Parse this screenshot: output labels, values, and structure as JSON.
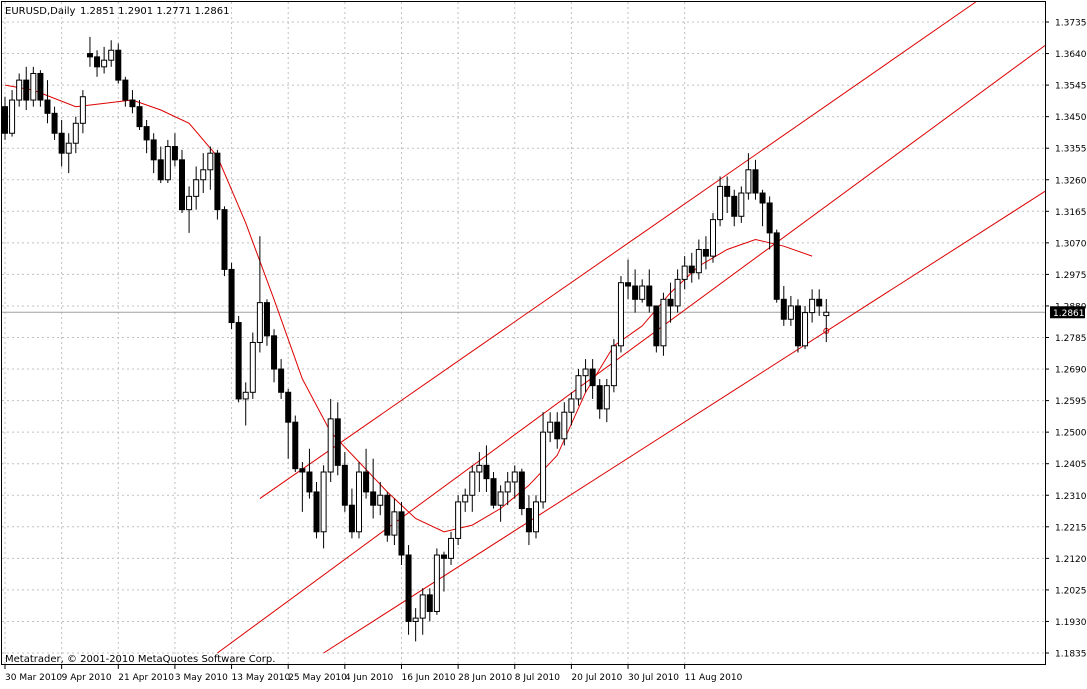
{
  "header": {
    "symbol": "EURUSD,Daily",
    "ohlc": "1.2851 1.2901 1.2771 1.2861"
  },
  "footer": {
    "copyright": "Metatrader, © 2001-2010 MetaQuotes Software Corp."
  },
  "colors": {
    "background": "#ffffff",
    "grid": "#c0c0c0",
    "candle": "#000000",
    "indicator": "#dd0000",
    "price_label_bg": "#000000",
    "price_label_fg": "#ffffff"
  },
  "chart_data": {
    "type": "candlestick",
    "symbol": "EURUSD",
    "timeframe": "Daily",
    "ylim": [
      1.1835,
      1.3785
    ],
    "y_ticks": [
      "1.3735",
      "1.3640",
      "1.3545",
      "1.3450",
      "1.3355",
      "1.3260",
      "1.3165",
      "1.3070",
      "1.2975",
      "1.2880",
      "1.2785",
      "1.2690",
      "1.2595",
      "1.2500",
      "1.2405",
      "1.2310",
      "1.2215",
      "1.2120",
      "1.2025",
      "1.1930",
      "1.1835"
    ],
    "x_ticks": [
      {
        "label": "30 Mar 2010",
        "bar": 0
      },
      {
        "label": "9 Apr 2010",
        "bar": 8
      },
      {
        "label": "21 Apr 2010",
        "bar": 16
      },
      {
        "label": "3 May 2010",
        "bar": 24
      },
      {
        "label": "13 May 2010",
        "bar": 32
      },
      {
        "label": "25 May 2010",
        "bar": 40
      },
      {
        "label": "4 Jun 2010",
        "bar": 48
      },
      {
        "label": "16 Jun 2010",
        "bar": 56
      },
      {
        "label": "28 Jun 2010",
        "bar": 64
      },
      {
        "label": "8 Jul 2010",
        "bar": 72
      },
      {
        "label": "20 Jul 2010",
        "bar": 80
      },
      {
        "label": "30 Jul 2010",
        "bar": 88
      },
      {
        "label": "11 Aug 2010",
        "bar": 96
      }
    ],
    "current_price": "1.2861",
    "grid": true,
    "candles": [
      [
        1.348,
        1.351,
        1.338,
        1.34
      ],
      [
        1.34,
        1.353,
        1.339,
        1.35
      ],
      [
        1.35,
        1.358,
        1.348,
        1.356
      ],
      [
        1.356,
        1.36,
        1.347,
        1.35
      ],
      [
        1.35,
        1.36,
        1.348,
        1.358
      ],
      [
        1.358,
        1.359,
        1.348,
        1.35
      ],
      [
        1.35,
        1.356,
        1.343,
        1.346
      ],
      [
        1.346,
        1.348,
        1.338,
        1.34
      ],
      [
        1.34,
        1.344,
        1.33,
        1.334
      ],
      [
        1.334,
        1.34,
        1.328,
        1.337
      ],
      [
        1.337,
        1.345,
        1.334,
        1.343
      ],
      [
        1.343,
        1.353,
        1.34,
        1.351
      ],
      [
        1.364,
        1.369,
        1.36,
        1.363
      ],
      [
        1.363,
        1.365,
        1.357,
        1.36
      ],
      [
        1.36,
        1.366,
        1.358,
        1.362
      ],
      [
        1.362,
        1.368,
        1.36,
        1.365
      ],
      [
        1.365,
        1.367,
        1.355,
        1.356
      ],
      [
        1.356,
        1.357,
        1.348,
        1.35
      ],
      [
        1.35,
        1.353,
        1.346,
        1.348
      ],
      [
        1.348,
        1.35,
        1.341,
        1.342
      ],
      [
        1.342,
        1.344,
        1.334,
        1.338
      ],
      [
        1.338,
        1.34,
        1.328,
        1.332
      ],
      [
        1.332,
        1.336,
        1.325,
        1.326
      ],
      [
        1.326,
        1.338,
        1.325,
        1.336
      ],
      [
        1.336,
        1.34,
        1.33,
        1.332
      ],
      [
        1.332,
        1.335,
        1.316,
        1.317
      ],
      [
        1.317,
        1.324,
        1.31,
        1.321
      ],
      [
        1.321,
        1.33,
        1.317,
        1.326
      ],
      [
        1.326,
        1.334,
        1.322,
        1.329
      ],
      [
        1.329,
        1.336,
        1.323,
        1.334
      ],
      [
        1.334,
        1.335,
        1.314,
        1.317
      ],
      [
        1.317,
        1.318,
        1.297,
        1.299
      ],
      [
        1.299,
        1.301,
        1.281,
        1.283
      ],
      [
        1.283,
        1.285,
        1.259,
        1.26
      ],
      [
        1.26,
        1.265,
        1.252,
        1.262
      ],
      [
        1.262,
        1.28,
        1.26,
        1.277
      ],
      [
        1.277,
        1.309,
        1.274,
        1.289
      ],
      [
        1.289,
        1.29,
        1.276,
        1.279
      ],
      [
        1.279,
        1.281,
        1.265,
        1.269
      ],
      [
        1.269,
        1.272,
        1.26,
        1.262
      ],
      [
        1.262,
        1.263,
        1.242,
        1.253
      ],
      [
        1.253,
        1.255,
        1.238,
        1.239
      ],
      [
        1.239,
        1.241,
        1.226,
        1.238
      ],
      [
        1.238,
        1.245,
        1.23,
        1.232
      ],
      [
        1.232,
        1.235,
        1.218,
        1.22
      ],
      [
        1.22,
        1.24,
        1.215,
        1.238
      ],
      [
        1.238,
        1.26,
        1.235,
        1.254
      ],
      [
        1.254,
        1.259,
        1.237,
        1.24
      ],
      [
        1.24,
        1.244,
        1.226,
        1.228
      ],
      [
        1.228,
        1.233,
        1.218,
        1.22
      ],
      [
        1.22,
        1.241,
        1.218,
        1.238
      ],
      [
        1.238,
        1.245,
        1.23,
        1.232
      ],
      [
        1.232,
        1.242,
        1.224,
        1.228
      ],
      [
        1.228,
        1.235,
        1.225,
        1.231
      ],
      [
        1.231,
        1.232,
        1.217,
        1.219
      ],
      [
        1.219,
        1.23,
        1.216,
        1.226
      ],
      [
        1.226,
        1.229,
        1.21,
        1.213
      ],
      [
        1.213,
        1.216,
        1.189,
        1.193
      ],
      [
        1.193,
        1.197,
        1.187,
        1.194
      ],
      [
        1.194,
        1.203,
        1.189,
        1.201
      ],
      [
        1.201,
        1.203,
        1.193,
        1.196
      ],
      [
        1.196,
        1.215,
        1.195,
        1.213
      ],
      [
        1.213,
        1.214,
        1.202,
        1.212
      ],
      [
        1.212,
        1.22,
        1.21,
        1.218
      ],
      [
        1.218,
        1.231,
        1.216,
        1.229
      ],
      [
        1.229,
        1.233,
        1.226,
        1.231
      ],
      [
        1.231,
        1.24,
        1.226,
        1.238
      ],
      [
        1.238,
        1.244,
        1.232,
        1.24
      ],
      [
        1.24,
        1.246,
        1.232,
        1.236
      ],
      [
        1.236,
        1.238,
        1.227,
        1.228
      ],
      [
        1.228,
        1.234,
        1.223,
        1.232
      ],
      [
        1.232,
        1.238,
        1.228,
        1.235
      ],
      [
        1.235,
        1.24,
        1.23,
        1.238
      ],
      [
        1.238,
        1.239,
        1.225,
        1.227
      ],
      [
        1.227,
        1.231,
        1.216,
        1.22
      ],
      [
        1.22,
        1.231,
        1.218,
        1.229
      ],
      [
        1.229,
        1.256,
        1.227,
        1.25
      ],
      [
        1.25,
        1.256,
        1.247,
        1.253
      ],
      [
        1.253,
        1.256,
        1.245,
        1.248
      ],
      [
        1.248,
        1.259,
        1.246,
        1.256
      ],
      [
        1.256,
        1.262,
        1.252,
        1.26
      ],
      [
        1.26,
        1.269,
        1.258,
        1.267
      ],
      [
        1.267,
        1.272,
        1.262,
        1.269
      ],
      [
        1.269,
        1.272,
        1.26,
        1.264
      ],
      [
        1.264,
        1.266,
        1.254,
        1.257
      ],
      [
        1.257,
        1.266,
        1.253,
        1.264
      ],
      [
        1.264,
        1.278,
        1.262,
        1.276
      ],
      [
        1.276,
        1.297,
        1.274,
        1.295
      ],
      [
        1.295,
        1.302,
        1.29,
        1.294
      ],
      [
        1.294,
        1.299,
        1.286,
        1.29
      ],
      [
        1.29,
        1.296,
        1.289,
        1.294
      ],
      [
        1.294,
        1.299,
        1.286,
        1.288
      ],
      [
        1.288,
        1.288,
        1.274,
        1.276
      ],
      [
        1.276,
        1.292,
        1.273,
        1.29
      ],
      [
        1.29,
        1.295,
        1.283,
        1.288
      ],
      [
        1.288,
        1.299,
        1.286,
        1.296
      ],
      [
        1.296,
        1.303,
        1.293,
        1.3
      ],
      [
        1.3,
        1.304,
        1.295,
        1.298
      ],
      [
        1.298,
        1.308,
        1.296,
        1.305
      ],
      [
        1.305,
        1.309,
        1.299,
        1.303
      ],
      [
        1.303,
        1.316,
        1.301,
        1.314
      ],
      [
        1.314,
        1.327,
        1.312,
        1.324
      ],
      [
        1.324,
        1.327,
        1.316,
        1.321
      ],
      [
        1.321,
        1.323,
        1.312,
        1.315
      ],
      [
        1.315,
        1.324,
        1.313,
        1.322
      ],
      [
        1.322,
        1.334,
        1.32,
        1.329
      ],
      [
        1.329,
        1.332,
        1.32,
        1.322
      ],
      [
        1.322,
        1.323,
        1.312,
        1.319
      ],
      [
        1.319,
        1.321,
        1.305,
        1.31
      ],
      [
        1.31,
        1.311,
        1.289,
        1.29
      ],
      [
        1.29,
        1.294,
        1.282,
        1.284
      ],
      [
        1.284,
        1.291,
        1.282,
        1.288
      ],
      [
        1.288,
        1.29,
        1.274,
        1.276
      ],
      [
        1.276,
        1.288,
        1.275,
        1.286
      ],
      [
        1.286,
        1.293,
        1.283,
        1.29
      ],
      [
        1.29,
        1.293,
        1.285,
        1.288
      ],
      [
        1.2851,
        1.2901,
        1.2771,
        1.2861
      ]
    ],
    "moving_average": [
      [
        0,
        1.3545
      ],
      [
        4,
        1.353
      ],
      [
        10,
        1.348
      ],
      [
        14,
        1.349
      ],
      [
        18,
        1.35
      ],
      [
        22,
        1.347
      ],
      [
        26,
        1.343
      ],
      [
        30,
        1.333
      ],
      [
        34,
        1.313
      ],
      [
        38,
        1.29
      ],
      [
        42,
        1.266
      ],
      [
        46,
        1.25
      ],
      [
        50,
        1.241
      ],
      [
        54,
        1.232
      ],
      [
        58,
        1.224
      ],
      [
        62,
        1.22
      ],
      [
        66,
        1.222
      ],
      [
        70,
        1.227
      ],
      [
        74,
        1.234
      ],
      [
        78,
        1.243
      ],
      [
        82,
        1.262
      ],
      [
        86,
        1.276
      ],
      [
        90,
        1.282
      ],
      [
        94,
        1.292
      ],
      [
        98,
        1.3
      ],
      [
        102,
        1.305
      ],
      [
        106,
        1.308
      ],
      [
        110,
        1.306
      ],
      [
        114,
        1.303
      ]
    ],
    "channels": [
      {
        "name": "upper",
        "p1": [
          36,
          1.23
        ],
        "p2": [
          107,
          1.335
        ],
        "extend": true
      },
      {
        "name": "middle",
        "p1": [
          30,
          1.1835
        ],
        "p2": [
          107,
          1.304
        ],
        "extend": true
      },
      {
        "name": "lower",
        "p1": [
          45,
          1.1835
        ],
        "p2": [
          115,
          1.279
        ],
        "extend": true
      }
    ]
  }
}
